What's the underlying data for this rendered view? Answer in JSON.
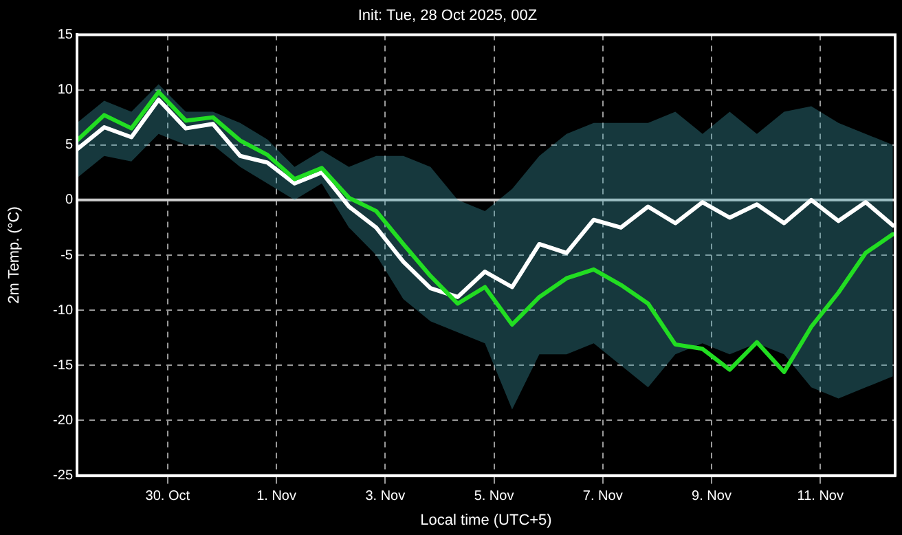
{
  "chart_data": {
    "type": "line",
    "title": "Init: Tue, 28 Oct 2025, 00Z",
    "xlabel": "Local time (UTC+5)",
    "ylabel": "2m Temp. (°C)",
    "x": [
      "2025-10-28T08:00",
      "2025-10-28T20:00",
      "2025-10-29T08:00",
      "2025-10-29T20:00",
      "2025-10-30T08:00",
      "2025-10-30T20:00",
      "2025-10-31T08:00",
      "2025-10-31T20:00",
      "2025-11-01T08:00",
      "2025-11-01T20:00",
      "2025-11-02T08:00",
      "2025-11-02T20:00",
      "2025-11-03T08:00",
      "2025-11-03T20:00",
      "2025-11-04T08:00",
      "2025-11-04T20:00",
      "2025-11-05T08:00",
      "2025-11-05T20:00",
      "2025-11-06T08:00",
      "2025-11-06T20:00",
      "2025-11-07T08:00",
      "2025-11-07T20:00",
      "2025-11-08T08:00",
      "2025-11-08T20:00",
      "2025-11-09T08:00",
      "2025-11-09T20:00",
      "2025-11-10T08:00",
      "2025-11-10T20:00",
      "2025-11-11T08:00",
      "2025-11-11T20:00",
      "2025-11-12T08:00"
    ],
    "series": [
      {
        "color": "#ffffff",
        "values": [
          4.6,
          6.6,
          5.7,
          9.1,
          6.5,
          6.9,
          4.0,
          3.4,
          1.5,
          2.5,
          -0.6,
          -2.5,
          -5.6,
          -8.0,
          -8.8,
          -6.5,
          -7.9,
          -4.0,
          -4.8,
          -1.8,
          -2.5,
          -0.6,
          -2.1,
          -0.2,
          -1.6,
          -0.4,
          -2.1,
          0,
          -1.9,
          -0.2,
          -2.3
        ],
        "lower": [
          2,
          4,
          3.5,
          6,
          5,
          5,
          3,
          1.5,
          0,
          1.5,
          -2.5,
          -5,
          -9,
          -11,
          -12,
          -13,
          -19,
          -14,
          -14,
          -13,
          -15,
          -17,
          -14,
          -13,
          -14,
          -13,
          -14,
          -17,
          -18,
          -17,
          -16
        ],
        "upper": [
          7,
          9,
          8,
          10.5,
          8,
          8,
          7,
          5.5,
          3,
          4.5,
          3,
          4,
          4,
          3,
          0,
          -1,
          1,
          4,
          6,
          7,
          7,
          7,
          8,
          6,
          8,
          6,
          8,
          8.5,
          7,
          6,
          5
        ]
      },
      {
        "color": "#22dd22",
        "values": [
          5.4,
          7.7,
          6.5,
          9.8,
          7.2,
          7.5,
          5.4,
          4.1,
          1.9,
          2.9,
          0.2,
          -1.0,
          -4.0,
          -6.9,
          -9.4,
          -7.9,
          -11.3,
          -8.8,
          -7.1,
          -6.3,
          -7.7,
          -9.4,
          -13.1,
          -13.5,
          -15.4,
          -12.9,
          -15.6,
          -11.5,
          -8.4,
          -4.8,
          -3.1
        ]
      }
    ],
    "xlim": [
      "2025-10-28T08:00",
      "2025-11-12T09:00"
    ],
    "xticks": [
      {
        "value": "2025-10-30",
        "label": "30. Oct"
      },
      {
        "value": "2025-11-01",
        "label": "1. Nov"
      },
      {
        "value": "2025-11-03",
        "label": "3. Nov"
      },
      {
        "value": "2025-11-05",
        "label": "5. Nov"
      },
      {
        "value": "2025-11-07",
        "label": "7. Nov"
      },
      {
        "value": "2025-11-09",
        "label": "9. Nov"
      },
      {
        "value": "2025-11-11",
        "label": "11. Nov"
      }
    ],
    "ylim": [
      -25,
      15
    ],
    "yticks": [
      -25,
      -20,
      -15,
      -10,
      -5,
      0,
      5,
      10,
      15
    ],
    "ref_lines": [
      {
        "axis": "y",
        "value": 0,
        "color": "#cccccc"
      }
    ],
    "grid": true,
    "legend": false,
    "marker": "none",
    "line_style": "solid"
  }
}
